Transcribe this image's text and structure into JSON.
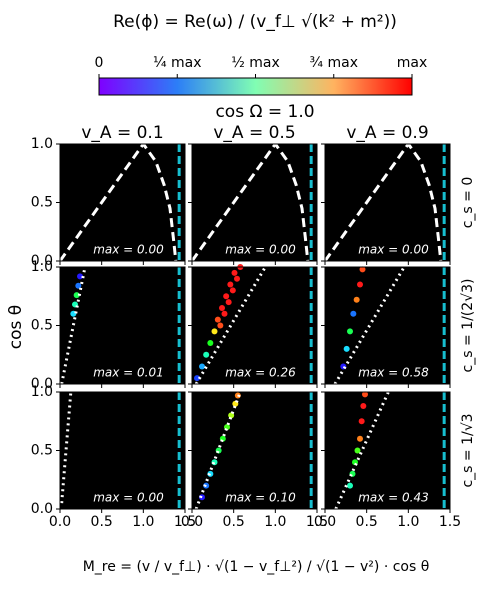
{
  "chart_data": {
    "type": "panel-grid",
    "title": "Re(ϕ) = Re(ω) / (v_f⊥ √(k² + m²))",
    "colorbar": {
      "colormap": "rainbow",
      "lim": [
        0,
        1
      ],
      "ticks": [
        {
          "value": 0,
          "label": "0"
        },
        {
          "value": 0.25,
          "label": "¼ max"
        },
        {
          "value": 0.5,
          "label": "½ max"
        },
        {
          "value": 0.75,
          "label": "¾ max"
        },
        {
          "value": 1,
          "label": "max"
        }
      ]
    },
    "subtitle": "cos Ω = 1.0",
    "column_titles": [
      "v_A = 0.1",
      "v_A = 0.5",
      "v_A = 0.9"
    ],
    "row_titles": [
      "c_s = 0",
      "c_s = 1/(2√3)",
      "c_s = 1/√3"
    ],
    "xlabel": "M_re = (v / v_f⊥) · √(1 − v_f⊥²) / √(1 − v²) · cos θ",
    "ylabel": "cos θ",
    "xlim": [
      0,
      1.5
    ],
    "ylim": [
      0,
      1
    ],
    "xticks": [
      {
        "value": 0,
        "label": "0.0"
      },
      0.5,
      {
        "value": 1,
        "label": "1.0"
      },
      1.5
    ],
    "yticks": [
      {
        "value": 0,
        "label": "0.0"
      },
      0.5,
      {
        "value": 1,
        "label": "1.0"
      }
    ],
    "vline_x": 1.43,
    "panels": [
      [
        {
          "annotation": "max = 0.00",
          "line": {
            "style": "dashed",
            "x": [
              0,
              0.25,
              0.5,
              0.75,
              1.0,
              1.15,
              1.25,
              1.32,
              1.36,
              1.39
            ],
            "y": [
              0,
              0.25,
              0.5,
              0.75,
              1.0,
              0.85,
              0.65,
              0.45,
              0.2,
              0
            ]
          }
        },
        {
          "annotation": "max = 0.00",
          "line": {
            "style": "dashed",
            "x": [
              0,
              0.25,
              0.5,
              0.75,
              1.0,
              1.15,
              1.25,
              1.32,
              1.36,
              1.39
            ],
            "y": [
              0,
              0.25,
              0.5,
              0.75,
              1.0,
              0.85,
              0.65,
              0.45,
              0.2,
              0
            ]
          }
        },
        {
          "annotation": "max = 0.00",
          "line": {
            "style": "dashed",
            "x": [
              0,
              0.25,
              0.5,
              0.75,
              1.0,
              1.15,
              1.25,
              1.32,
              1.36,
              1.39
            ],
            "y": [
              0,
              0.25,
              0.5,
              0.75,
              1.0,
              0.85,
              0.65,
              0.45,
              0.2,
              0
            ]
          }
        }
      ],
      [
        {
          "annotation": "max = 0.01",
          "line": {
            "style": "dotted",
            "x": [
              0.02,
              0.3
            ],
            "y": [
              0,
              1
            ]
          },
          "points": {
            "x": [
              0.16,
              0.18,
              0.2,
              0.22,
              0.24
            ],
            "y": [
              0.6,
              0.68,
              0.76,
              0.84,
              0.92
            ],
            "c": [
              0.3,
              0.4,
              0.5,
              0.2,
              0.1
            ]
          }
        },
        {
          "annotation": "max = 0.26",
          "line": {
            "style": "dotted",
            "x": [
              0.05,
              0.88
            ],
            "y": [
              0,
              1
            ]
          },
          "points": {
            "x": [
              0.06,
              0.12,
              0.17,
              0.22,
              0.27,
              0.31,
              0.36,
              0.41,
              0.46,
              0.51,
              0.34,
              0.39,
              0.44,
              0.49,
              0.54,
              0.58
            ],
            "y": [
              0.05,
              0.15,
              0.25,
              0.35,
              0.45,
              0.55,
              0.65,
              0.75,
              0.85,
              0.95,
              0.5,
              0.6,
              0.7,
              0.8,
              0.9,
              1.0
            ],
            "c": [
              0.15,
              0.25,
              0.4,
              0.55,
              0.8,
              0.95,
              1,
              1,
              1,
              1,
              0.95,
              1,
              1,
              1,
              1,
              1
            ]
          }
        },
        {
          "annotation": "max = 0.58",
          "line": {
            "style": "dotted",
            "x": [
              0.12,
              0.95
            ],
            "y": [
              0,
              1
            ]
          },
          "points": {
            "x": [
              0.22,
              0.26,
              0.3,
              0.34,
              0.38,
              0.42,
              0.45
            ],
            "y": [
              0.15,
              0.3,
              0.45,
              0.6,
              0.72,
              0.85,
              0.98
            ],
            "c": [
              0.1,
              0.3,
              0.5,
              0.2,
              0.9,
              1,
              0.95
            ]
          }
        }
      ],
      [
        {
          "annotation": "max = 0.00",
          "line": {
            "style": "dotted",
            "x": [
              0.02,
              0.13
            ],
            "y": [
              0.05,
              1
            ]
          }
        },
        {
          "annotation": "max = 0.10",
          "line": {
            "style": "dotted",
            "x": [
              0.05,
              0.58
            ],
            "y": [
              0,
              1
            ]
          },
          "points": {
            "x": [
              0.12,
              0.17,
              0.22,
              0.27,
              0.32,
              0.37,
              0.42,
              0.47,
              0.52,
              0.55
            ],
            "y": [
              0.1,
              0.2,
              0.3,
              0.4,
              0.5,
              0.6,
              0.7,
              0.8,
              0.9,
              0.97
            ],
            "c": [
              0.1,
              0.2,
              0.3,
              0.4,
              0.5,
              0.55,
              0.6,
              0.7,
              0.8,
              0.9
            ]
          }
        },
        {
          "annotation": "max = 0.43",
          "line": {
            "style": "dotted",
            "x": [
              0.13,
              0.76
            ],
            "y": [
              0,
              1
            ]
          },
          "points": {
            "x": [
              0.3,
              0.33,
              0.36,
              0.39,
              0.42,
              0.44,
              0.46,
              0.48
            ],
            "y": [
              0.2,
              0.3,
              0.4,
              0.5,
              0.6,
              0.75,
              0.88,
              0.98
            ],
            "c": [
              0.4,
              0.5,
              0.55,
              0.6,
              0.9,
              1,
              1,
              0.95
            ]
          }
        }
      ]
    ]
  }
}
